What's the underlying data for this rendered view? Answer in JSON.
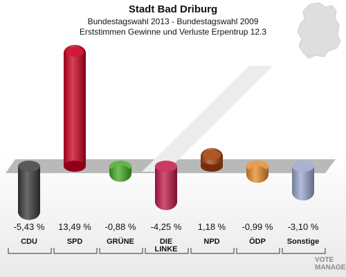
{
  "header": {
    "title": "Stadt Bad Driburg",
    "subtitle": "Bundestagswahl 2013 - Bundestagswahl 2009",
    "description": "Erststimmen Gewinne und Verluste Erpentrup 12.3"
  },
  "brand": {
    "line1": "VOTE",
    "line2": "MANAGER"
  },
  "chart_data": {
    "type": "bar",
    "categories": [
      "CDU",
      "SPD",
      "GRÜNE",
      "DIE LINKE",
      "NPD",
      "ÖDP",
      "Sonstige"
    ],
    "values": [
      -5.43,
      13.49,
      -0.88,
      -4.25,
      1.18,
      -0.99,
      -3.1
    ],
    "value_labels": [
      "-5,43 %",
      "13,49 %",
      "-0,88 %",
      "-4,25 %",
      "1,18 %",
      "-0,99 %",
      "-3,10 %"
    ],
    "colors": [
      "#3a3a3a",
      "#cc0022",
      "#44aa22",
      "#c01848",
      "#a8420e",
      "#e88a2a",
      "#99a6cc"
    ],
    "title": "Stadt Bad Driburg",
    "xlabel": "",
    "ylabel": "",
    "grid": false,
    "legend": "none"
  }
}
